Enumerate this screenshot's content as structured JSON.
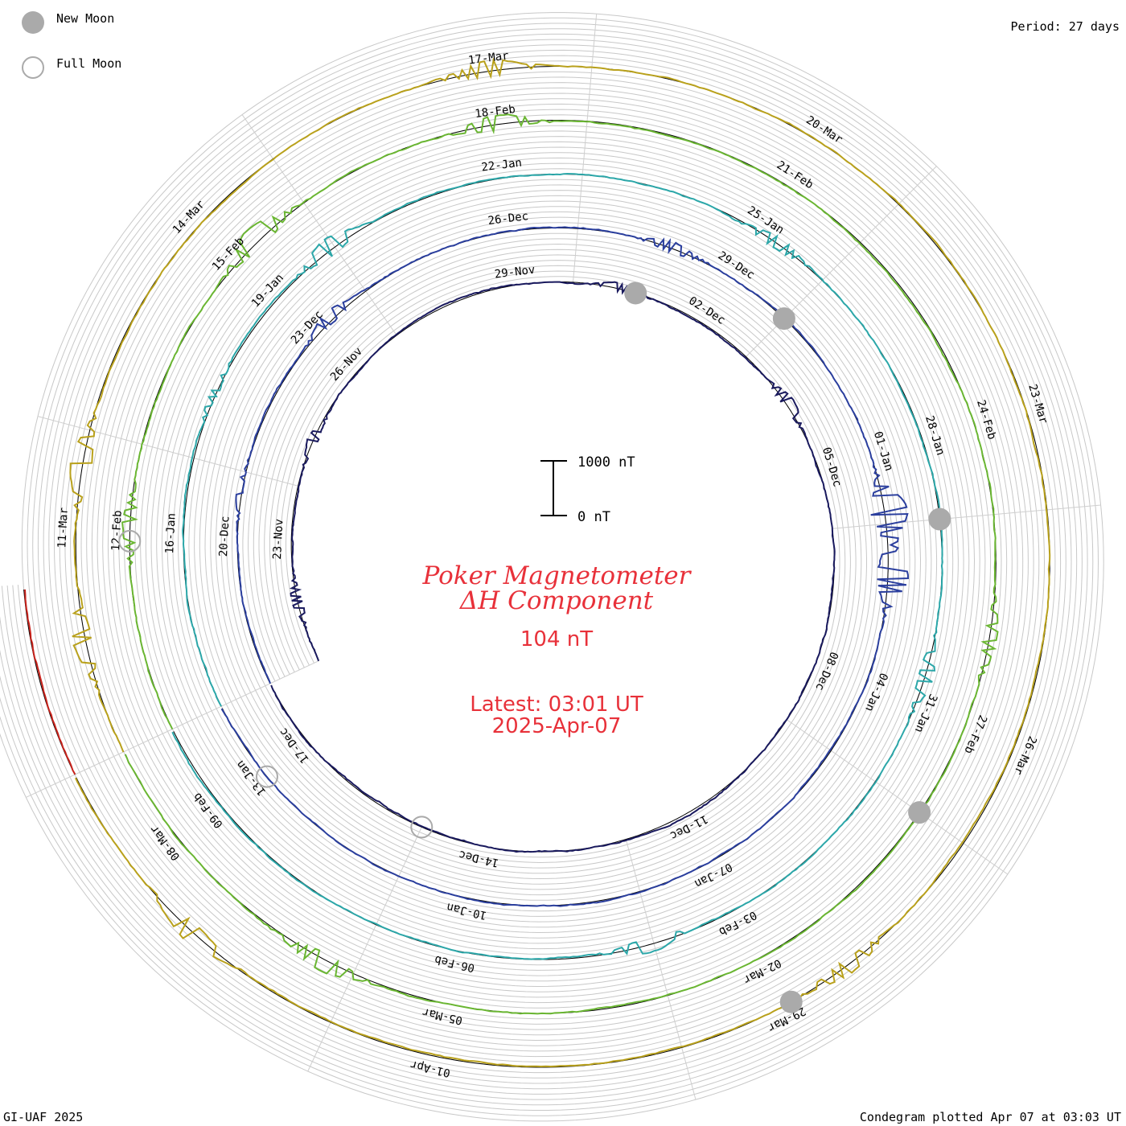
{
  "legend": {
    "new_moon_label": "New Moon",
    "full_moon_label": "Full Moon",
    "new_moon_color": "#aaaaaa",
    "full_moon_color": "#aaaaaa"
  },
  "period_label": "Period: 27 days",
  "title_line1": "Poker Magnetometer",
  "title_line2": "ΔH Component",
  "value_label": "104 nT",
  "latest_label": "Latest: 03:01 UT",
  "date_label": "2025-Apr-07",
  "scale": {
    "top_label": "1000 nT",
    "bottom_label": "0 nT"
  },
  "footer_left": "GI-UAF 2025",
  "footer_right": "Condegram plotted Apr 07 at 03:03 UT",
  "chart_data": {
    "type": "line",
    "projection": "polar spiral (condegram), clockwise, 27-day rotation",
    "period_days": 27,
    "units": "nT",
    "scale_bar_nT": [
      0,
      1000
    ],
    "rotations": [
      {
        "start": "2024-11-21",
        "color": "#1a1a5e",
        "tick_labels": [
          "23-Nov",
          "26-Nov",
          "29-Nov",
          "02-Dec",
          "05-Dec",
          "08-Dec",
          "11-Dec",
          "14-Dec",
          "17-Dec"
        ],
        "disturbances": [
          [
            0.04,
            120
          ],
          [
            0.14,
            110
          ],
          [
            0.36,
            90
          ],
          [
            0.48,
            140
          ]
        ]
      },
      {
        "start": "2024-12-18",
        "color": "#2b3f9e",
        "tick_labels": [
          "20-Dec",
          "23-Dec",
          "26-Dec",
          "29-Dec",
          "01-Jan",
          "04-Jan",
          "07-Jan",
          "10-Jan",
          "13-Jan"
        ],
        "disturbances": [
          [
            0.1,
            70
          ],
          [
            0.2,
            140
          ],
          [
            0.38,
            120
          ],
          [
            0.55,
            420
          ],
          [
            0.58,
            360
          ]
        ]
      },
      {
        "start": "2025-01-14",
        "color": "#2ca7a9",
        "tick_labels": [
          "16-Jan",
          "19-Jan",
          "22-Jan",
          "25-Jan",
          "28-Jan",
          "31-Jan",
          "03-Feb",
          "06-Feb",
          "09-Feb"
        ],
        "disturbances": [
          [
            0.14,
            80
          ],
          [
            0.22,
            200
          ],
          [
            0.42,
            130
          ],
          [
            0.62,
            170
          ],
          [
            0.78,
            160
          ]
        ]
      },
      {
        "start": "2025-02-10",
        "color": "#6ab632",
        "tick_labels": [
          "12-Feb",
          "15-Feb",
          "18-Feb",
          "21-Feb",
          "24-Feb",
          "27-Feb",
          "02-Mar",
          "05-Mar",
          "08-Mar"
        ],
        "disturbances": [
          [
            0.08,
            150
          ],
          [
            0.2,
            260
          ],
          [
            0.3,
            180
          ],
          [
            0.6,
            140
          ],
          [
            0.9,
            200
          ]
        ]
      },
      {
        "start": "2025-03-09",
        "color": "#b9a11c",
        "tick_labels": [
          "11-Mar",
          "14-Mar",
          "17-Mar",
          "20-Mar",
          "23-Mar",
          "26-Mar",
          "29-Mar",
          "01-Apr"
        ],
        "disturbances": [
          [
            0.04,
            220
          ],
          [
            0.1,
            240
          ],
          [
            0.3,
            180
          ],
          [
            0.72,
            160
          ],
          [
            0.94,
            210
          ]
        ]
      },
      {
        "start": "2025-04-05",
        "color": "#c8231c",
        "tick_labels": [],
        "disturbances": [
          [
            0.1,
            200
          ],
          [
            0.2,
            160
          ]
        ]
      }
    ],
    "moon_phases": [
      {
        "type": "new",
        "date": "2024-12-01"
      },
      {
        "type": "full",
        "date": "2024-12-15"
      },
      {
        "type": "new",
        "date": "2024-12-30"
      },
      {
        "type": "full",
        "date": "2025-01-13"
      },
      {
        "type": "new",
        "date": "2025-01-29"
      },
      {
        "type": "full",
        "date": "2025-02-12"
      },
      {
        "type": "new",
        "date": "2025-02-28"
      },
      {
        "type": "new",
        "date": "2025-03-29"
      }
    ]
  }
}
